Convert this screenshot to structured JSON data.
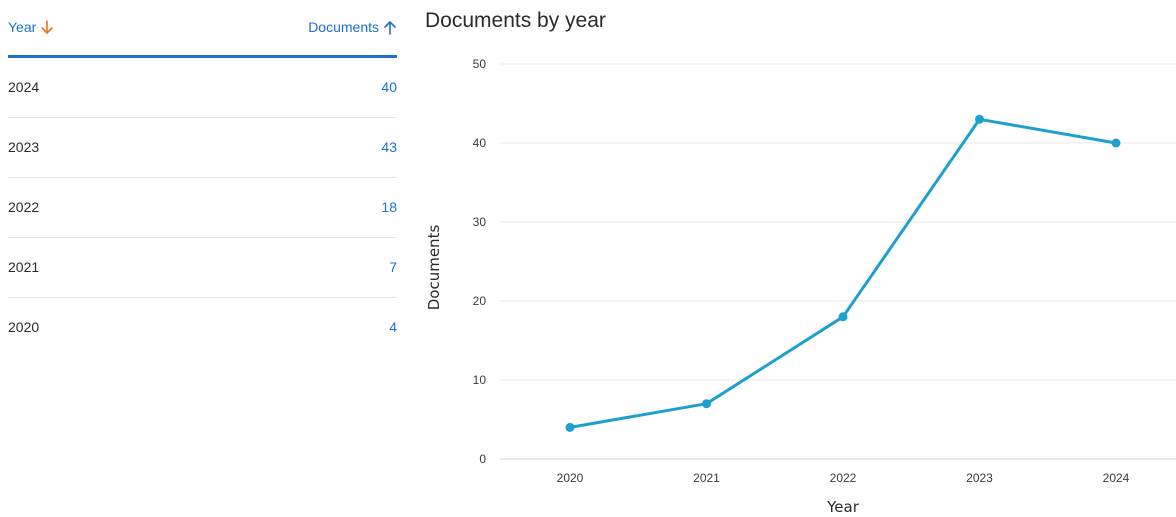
{
  "table": {
    "header": {
      "year_label": "Year",
      "year_sort_icon": "arrow-down-icon",
      "year_sort_color": "#e8731a",
      "documents_label": "Documents",
      "documents_sort_icon": "arrow-up-icon"
    },
    "rows": [
      {
        "year": "2024",
        "documents": "40"
      },
      {
        "year": "2023",
        "documents": "43"
      },
      {
        "year": "2022",
        "documents": "18"
      },
      {
        "year": "2021",
        "documents": "7"
      },
      {
        "year": "2020",
        "documents": "4"
      }
    ]
  },
  "colors": {
    "accent": "#1f6fd1",
    "series": "#1ea0cf",
    "sort_arrow_active": "#e8731a"
  },
  "chart_data": {
    "type": "line",
    "title": "Documents by year",
    "xlabel": "Year",
    "ylabel": "Documents",
    "categories": [
      "2020",
      "2021",
      "2022",
      "2023",
      "2024"
    ],
    "series": [
      {
        "values": [
          4,
          7,
          18,
          43,
          40
        ]
      }
    ],
    "ylim": [
      0,
      50
    ],
    "yticks": [
      0,
      10,
      20,
      30,
      40,
      50
    ],
    "grid": "horizontal",
    "legend": "none"
  }
}
